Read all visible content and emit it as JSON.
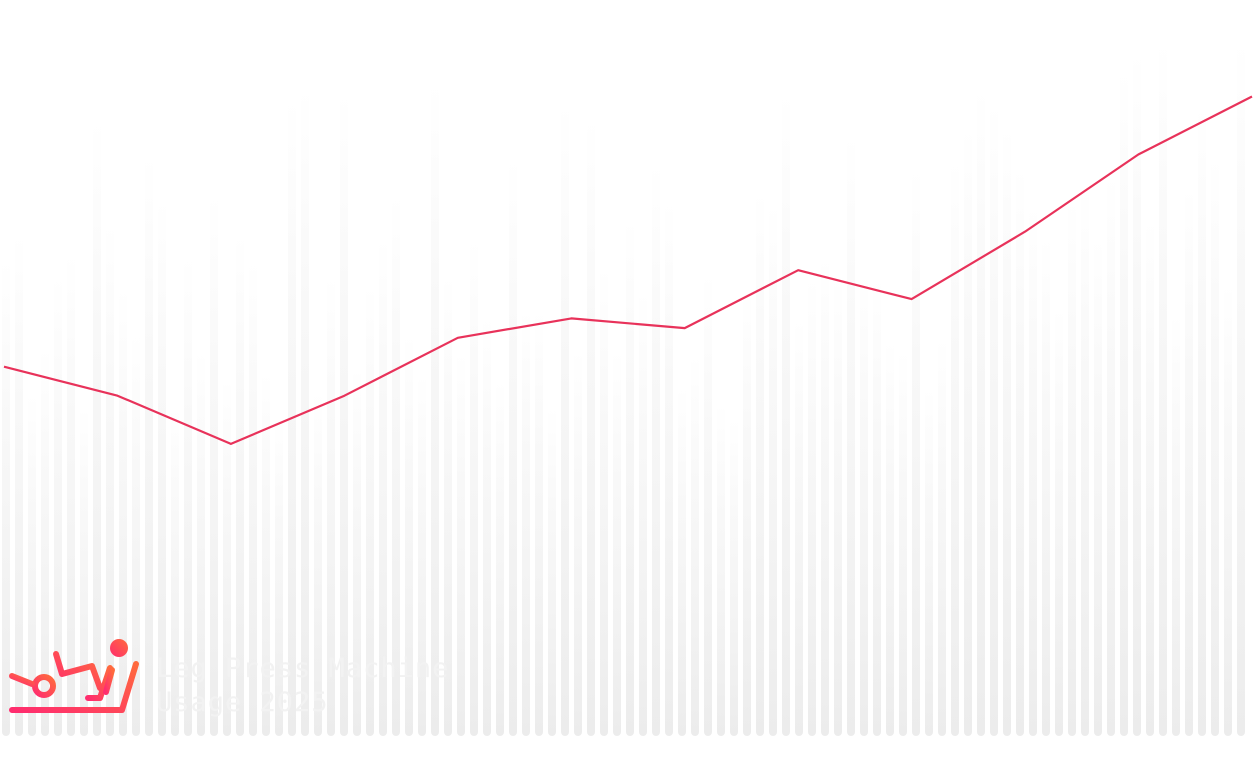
{
  "brand": {
    "title_line1": "Leg Press Machine",
    "title_line2": "Usage 2025",
    "icon": "leg-press-machine-icon",
    "icon_color_start": "#ff2d6f",
    "icon_color_end": "#ff6a3d"
  },
  "chart_data": {
    "type": "line",
    "title": "Leg Press Machine Usage 2025",
    "xlabel": "",
    "ylabel": "",
    "x": [
      1,
      2,
      3,
      4,
      5,
      6,
      7,
      8,
      9,
      10,
      11,
      12
    ],
    "series": [
      {
        "values": [
          42,
          39,
          34,
          39,
          45,
          47,
          46,
          52,
          49,
          56,
          64,
          70
        ],
        "color": "#e8325a"
      }
    ],
    "ylim": [
      0,
      80
    ],
    "grid": false,
    "legend": "none",
    "background_bars_color": "#f0f0f0"
  }
}
